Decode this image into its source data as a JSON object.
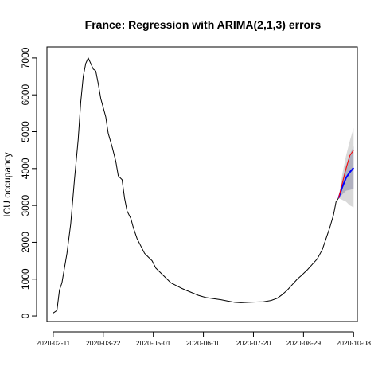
{
  "chart_data": {
    "type": "line",
    "title": "France: Regression with ARIMA(2,1,3) errors",
    "xlabel": "",
    "ylabel": "ICU occupancy",
    "x_tick_labels": [
      "2020-02-11",
      "2020-03-22",
      "2020-05-01",
      "2020-06-10",
      "2020-07-20",
      "2020-08-29",
      "2020-10-08"
    ],
    "y_ticks": [
      0,
      1000,
      2000,
      3000,
      4000,
      5000,
      6000,
      7000
    ],
    "xlim": [
      "2020-02-06",
      "2020-10-11"
    ],
    "ylim": [
      -150,
      7300
    ],
    "grid": false,
    "series": [
      {
        "role": "observed",
        "color": "#000000",
        "points": [
          [
            "2020-02-11",
            80
          ],
          [
            "2020-02-14",
            150
          ],
          [
            "2020-02-16",
            700
          ],
          [
            "2020-02-18",
            900
          ],
          [
            "2020-02-20",
            1300
          ],
          [
            "2020-02-22",
            1700
          ],
          [
            "2020-02-25",
            2500
          ],
          [
            "2020-02-28",
            3700
          ],
          [
            "2020-03-02",
            4800
          ],
          [
            "2020-03-04",
            5800
          ],
          [
            "2020-03-06",
            6500
          ],
          [
            "2020-03-08",
            6850
          ],
          [
            "2020-03-10",
            7000
          ],
          [
            "2020-03-12",
            6850
          ],
          [
            "2020-03-14",
            6700
          ],
          [
            "2020-03-16",
            6650
          ],
          [
            "2020-03-18",
            6300
          ],
          [
            "2020-03-20",
            5900
          ],
          [
            "2020-03-22",
            5650
          ],
          [
            "2020-03-24",
            5400
          ],
          [
            "2020-03-26",
            4950
          ],
          [
            "2020-03-29",
            4600
          ],
          [
            "2020-04-01",
            4200
          ],
          [
            "2020-04-03",
            3800
          ],
          [
            "2020-04-06",
            3700
          ],
          [
            "2020-04-08",
            3200
          ],
          [
            "2020-04-10",
            2850
          ],
          [
            "2020-04-13",
            2650
          ],
          [
            "2020-04-15",
            2400
          ],
          [
            "2020-04-18",
            2100
          ],
          [
            "2020-04-21",
            1900
          ],
          [
            "2020-04-24",
            1700
          ],
          [
            "2020-04-27",
            1600
          ],
          [
            "2020-04-30",
            1500
          ],
          [
            "2020-05-03",
            1300
          ],
          [
            "2020-05-06",
            1200
          ],
          [
            "2020-05-09",
            1100
          ],
          [
            "2020-05-12",
            1000
          ],
          [
            "2020-05-15",
            900
          ],
          [
            "2020-05-19",
            830
          ],
          [
            "2020-05-23",
            760
          ],
          [
            "2020-05-27",
            700
          ],
          [
            "2020-06-01",
            630
          ],
          [
            "2020-06-06",
            560
          ],
          [
            "2020-06-12",
            500
          ],
          [
            "2020-06-18",
            470
          ],
          [
            "2020-06-24",
            440
          ],
          [
            "2020-06-30",
            400
          ],
          [
            "2020-07-05",
            370
          ],
          [
            "2020-07-10",
            360
          ],
          [
            "2020-07-16",
            370
          ],
          [
            "2020-07-22",
            380
          ],
          [
            "2020-07-28",
            385
          ],
          [
            "2020-08-03",
            420
          ],
          [
            "2020-08-08",
            480
          ],
          [
            "2020-08-12",
            580
          ],
          [
            "2020-08-16",
            700
          ],
          [
            "2020-08-20",
            850
          ],
          [
            "2020-08-24",
            1000
          ],
          [
            "2020-08-28",
            1120
          ],
          [
            "2020-09-01",
            1250
          ],
          [
            "2020-09-05",
            1400
          ],
          [
            "2020-09-09",
            1550
          ],
          [
            "2020-09-13",
            1800
          ],
          [
            "2020-09-16",
            2100
          ],
          [
            "2020-09-19",
            2400
          ],
          [
            "2020-09-22",
            2750
          ],
          [
            "2020-09-24",
            3100
          ],
          [
            "2020-09-26",
            3200
          ]
        ]
      },
      {
        "role": "forecast-mean",
        "color": "#0000ff",
        "points": [
          [
            "2020-09-26",
            3200
          ],
          [
            "2020-09-29",
            3500
          ],
          [
            "2020-10-02",
            3750
          ],
          [
            "2020-10-05",
            3900
          ],
          [
            "2020-10-08",
            4020
          ]
        ]
      },
      {
        "role": "actual-after-forecast",
        "color": "#ff0000",
        "points": [
          [
            "2020-09-26",
            3200
          ],
          [
            "2020-09-29",
            3600
          ],
          [
            "2020-10-02",
            4000
          ],
          [
            "2020-10-05",
            4350
          ],
          [
            "2020-10-08",
            4500
          ]
        ]
      }
    ],
    "intervals": [
      {
        "level": "95",
        "color": "#d9d9d9",
        "x": [
          "2020-09-26",
          "2020-09-29",
          "2020-10-02",
          "2020-10-05",
          "2020-10-08"
        ],
        "lower": [
          3200,
          3150,
          3100,
          3000,
          2950
        ],
        "upper": [
          3200,
          3850,
          4350,
          4750,
          5100
        ]
      },
      {
        "level": "80",
        "color": "#b0b0c0",
        "x": [
          "2020-09-26",
          "2020-09-29",
          "2020-10-02",
          "2020-10-05",
          "2020-10-08"
        ],
        "lower": [
          3200,
          3300,
          3400,
          3420,
          3450
        ],
        "upper": [
          3200,
          3700,
          4100,
          4380,
          4600
        ]
      }
    ]
  }
}
